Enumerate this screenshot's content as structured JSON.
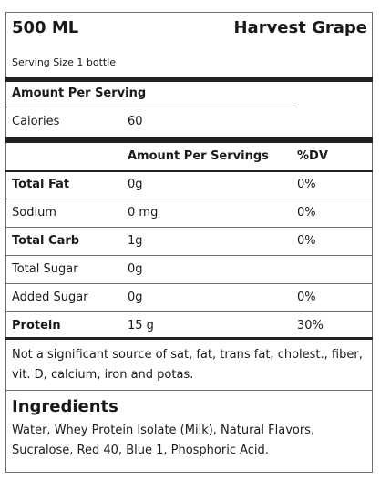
{
  "header": {
    "size": "500 ML",
    "flavor": "Harvest Grape",
    "serving_size": "Serving Size 1 bottle"
  },
  "amount_per_serving_label": "Amount Per Serving",
  "calories": {
    "label": "Calories",
    "value": "60"
  },
  "table": {
    "headers": [
      "",
      "Amount Per Servings",
      "%DV"
    ],
    "rows": [
      {
        "name": "Total Fat",
        "amount": "0g",
        "dv": "0%",
        "bold": true
      },
      {
        "name": "Sodium",
        "amount": "0 mg",
        "dv": "0%",
        "bold": false
      },
      {
        "name": "Total Carb",
        "amount": "1g",
        "dv": "0%",
        "bold": true
      },
      {
        "name": "Total Sugar",
        "amount": "0g",
        "dv": "",
        "bold": false
      },
      {
        "name": "Added Sugar",
        "amount": "0g",
        "dv": "0%",
        "bold": false
      },
      {
        "name": "Protein",
        "amount": "15 g",
        "dv": "30%",
        "bold": true
      }
    ]
  },
  "footnote": "Not a significant source of sat, fat, trans fat, cholest., fiber, vit. D, calcium, iron and potas.",
  "ingredients": {
    "title": "Ingredients",
    "text": "Water, Whey Protein Isolate (Milk), Natural Flavors, Sucralose, Red 40, Blue 1, Phosphoric Acid."
  }
}
